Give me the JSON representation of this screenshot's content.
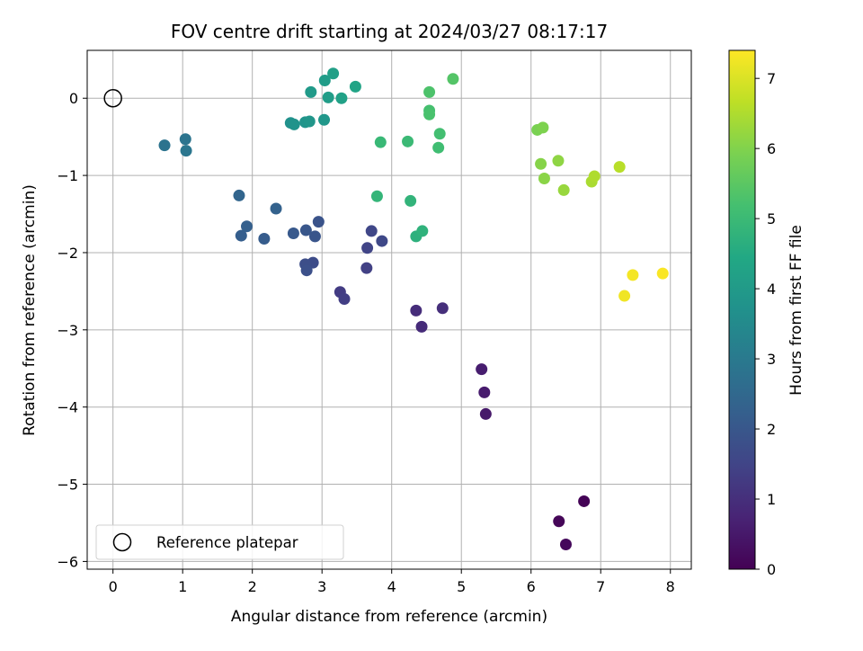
{
  "chart_data": {
    "type": "scatter",
    "title": "FOV centre drift starting at 2024/03/27 08:17:17",
    "xlabel": "Angular distance from reference (arcmin)",
    "ylabel": "Rotation from reference (arcmin)",
    "xlim": [
      -0.37,
      8.3
    ],
    "ylim": [
      -6.1,
      0.62
    ],
    "xticks": [
      0,
      1,
      2,
      3,
      4,
      5,
      6,
      7,
      8
    ],
    "xtick_labels": [
      "0",
      "1",
      "2",
      "3",
      "4",
      "5",
      "6",
      "7",
      "8"
    ],
    "yticks": [
      0,
      -1,
      -2,
      -3,
      -4,
      -5,
      -6
    ],
    "ytick_labels": [
      "0",
      "−1",
      "−2",
      "−3",
      "−4",
      "−5",
      "−6"
    ],
    "grid": true,
    "legend": {
      "placement": "lower-left",
      "entries": [
        "Reference platepar"
      ]
    },
    "reference_point": {
      "x": 0,
      "y": 0
    },
    "colorbar": {
      "label": "Hours from first FF file",
      "range": [
        0,
        7.4
      ],
      "ticks": [
        0,
        1,
        2,
        3,
        4,
        5,
        6,
        7
      ],
      "tick_labels": [
        "0",
        "1",
        "2",
        "3",
        "4",
        "5",
        "6",
        "7"
      ],
      "colormap": "viridis"
    },
    "points": [
      {
        "x": 6.76,
        "y": -5.22,
        "hours": 0.05
      },
      {
        "x": 6.4,
        "y": -5.48,
        "hours": 0.1
      },
      {
        "x": 6.5,
        "y": -5.78,
        "hours": 0.15
      },
      {
        "x": 5.35,
        "y": -4.09,
        "hours": 0.5
      },
      {
        "x": 5.33,
        "y": -3.81,
        "hours": 0.55
      },
      {
        "x": 5.29,
        "y": -3.51,
        "hours": 0.6
      },
      {
        "x": 4.43,
        "y": -2.96,
        "hours": 0.9
      },
      {
        "x": 4.35,
        "y": -2.75,
        "hours": 0.95
      },
      {
        "x": 4.73,
        "y": -2.72,
        "hours": 1.0
      },
      {
        "x": 3.26,
        "y": -2.51,
        "hours": 1.3
      },
      {
        "x": 3.32,
        "y": -2.6,
        "hours": 1.35
      },
      {
        "x": 3.64,
        "y": -2.2,
        "hours": 1.4
      },
      {
        "x": 3.65,
        "y": -1.94,
        "hours": 1.5
      },
      {
        "x": 3.71,
        "y": -1.72,
        "hours": 1.55
      },
      {
        "x": 3.86,
        "y": -1.85,
        "hours": 1.6
      },
      {
        "x": 2.87,
        "y": -2.13,
        "hours": 1.7
      },
      {
        "x": 2.76,
        "y": -2.15,
        "hours": 1.75
      },
      {
        "x": 2.78,
        "y": -2.23,
        "hours": 1.8
      },
      {
        "x": 2.95,
        "y": -1.6,
        "hours": 1.9
      },
      {
        "x": 2.9,
        "y": -1.79,
        "hours": 1.95
      },
      {
        "x": 2.77,
        "y": -1.71,
        "hours": 2.0
      },
      {
        "x": 2.59,
        "y": -1.75,
        "hours": 2.05
      },
      {
        "x": 2.17,
        "y": -1.82,
        "hours": 2.15
      },
      {
        "x": 1.84,
        "y": -1.78,
        "hours": 2.2
      },
      {
        "x": 1.92,
        "y": -1.66,
        "hours": 2.25
      },
      {
        "x": 2.34,
        "y": -1.43,
        "hours": 2.3
      },
      {
        "x": 1.81,
        "y": -1.26,
        "hours": 2.4
      },
      {
        "x": 0.74,
        "y": -0.61,
        "hours": 2.8
      },
      {
        "x": 1.04,
        "y": -0.53,
        "hours": 2.85
      },
      {
        "x": 1.05,
        "y": -0.68,
        "hours": 2.9
      },
      {
        "x": 2.55,
        "y": -0.32,
        "hours": 3.7
      },
      {
        "x": 2.6,
        "y": -0.34,
        "hours": 3.75
      },
      {
        "x": 2.76,
        "y": -0.31,
        "hours": 3.8
      },
      {
        "x": 2.82,
        "y": -0.3,
        "hours": 3.85
      },
      {
        "x": 3.03,
        "y": -0.28,
        "hours": 3.9
      },
      {
        "x": 2.84,
        "y": 0.08,
        "hours": 4.0
      },
      {
        "x": 3.04,
        "y": 0.23,
        "hours": 4.05
      },
      {
        "x": 3.09,
        "y": 0.01,
        "hours": 4.1
      },
      {
        "x": 3.16,
        "y": 0.32,
        "hours": 4.15
      },
      {
        "x": 3.28,
        "y": 0.0,
        "hours": 4.2
      },
      {
        "x": 3.48,
        "y": 0.15,
        "hours": 4.3
      },
      {
        "x": 4.35,
        "y": -1.79,
        "hours": 4.7
      },
      {
        "x": 4.44,
        "y": -1.72,
        "hours": 4.75
      },
      {
        "x": 4.27,
        "y": -1.33,
        "hours": 4.8
      },
      {
        "x": 3.79,
        "y": -1.27,
        "hours": 4.85
      },
      {
        "x": 3.84,
        "y": -0.57,
        "hours": 4.95
      },
      {
        "x": 4.23,
        "y": -0.56,
        "hours": 5.0
      },
      {
        "x": 4.67,
        "y": -0.64,
        "hours": 5.1
      },
      {
        "x": 4.69,
        "y": -0.46,
        "hours": 5.15
      },
      {
        "x": 4.54,
        "y": -0.16,
        "hours": 5.2
      },
      {
        "x": 4.54,
        "y": -0.21,
        "hours": 5.25
      },
      {
        "x": 4.54,
        "y": 0.08,
        "hours": 5.3
      },
      {
        "x": 4.88,
        "y": 0.25,
        "hours": 5.4
      },
      {
        "x": 6.09,
        "y": -0.41,
        "hours": 5.9
      },
      {
        "x": 6.17,
        "y": -0.38,
        "hours": 5.95
      },
      {
        "x": 6.14,
        "y": -0.85,
        "hours": 6.05
      },
      {
        "x": 6.19,
        "y": -1.04,
        "hours": 6.1
      },
      {
        "x": 6.39,
        "y": -0.81,
        "hours": 6.15
      },
      {
        "x": 6.47,
        "y": -1.19,
        "hours": 6.25
      },
      {
        "x": 6.87,
        "y": -1.08,
        "hours": 6.45
      },
      {
        "x": 6.91,
        "y": -1.01,
        "hours": 6.5
      },
      {
        "x": 7.27,
        "y": -0.89,
        "hours": 6.6
      },
      {
        "x": 7.34,
        "y": -2.56,
        "hours": 7.25
      },
      {
        "x": 7.46,
        "y": -2.29,
        "hours": 7.3
      },
      {
        "x": 7.89,
        "y": -2.27,
        "hours": 7.35
      }
    ]
  }
}
